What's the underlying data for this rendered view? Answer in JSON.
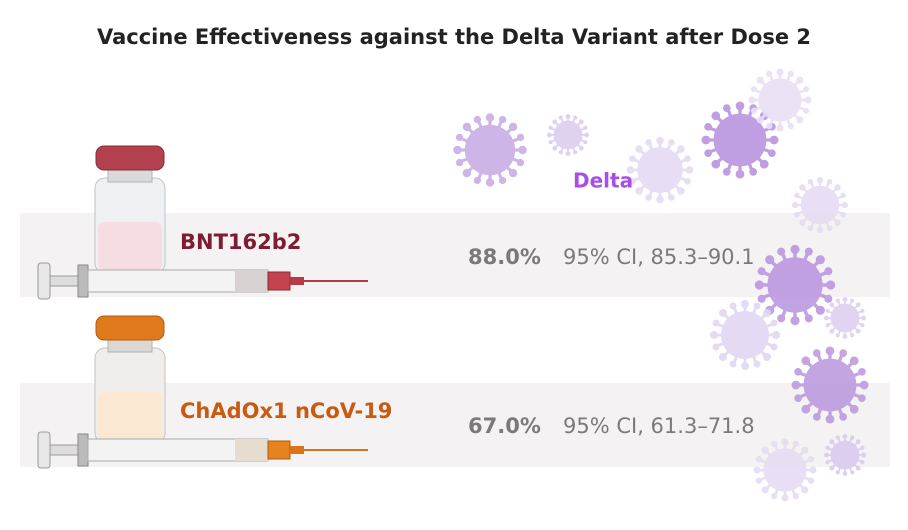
{
  "title": "Vaccine Effectiveness against the Delta Variant after Dose 2",
  "variant": "Delta",
  "rows": [
    {
      "vaccine": "BNT162b2",
      "effectiveness": "88.0%",
      "ci": "95% CI, 85.3–90.1"
    },
    {
      "vaccine": "ChAdOx1 nCoV-19",
      "effectiveness": "67.0%",
      "ci": "95% CI, 61.3–71.8"
    }
  ]
}
